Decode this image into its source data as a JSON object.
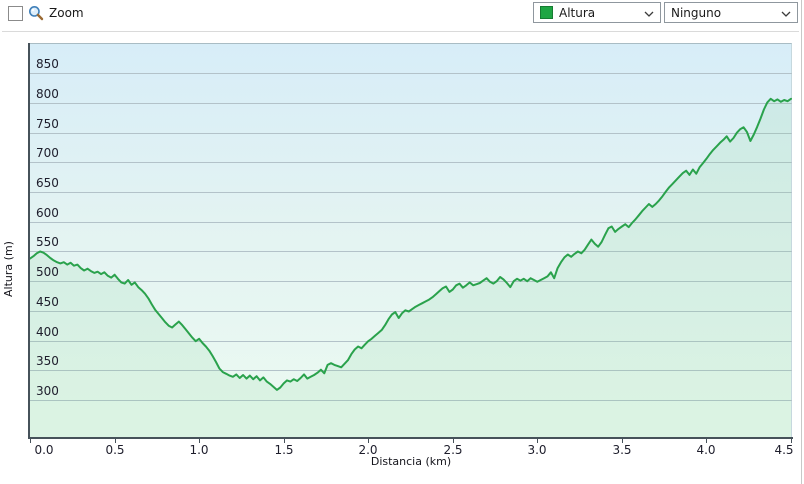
{
  "toolbar": {
    "zoom_label": "Zoom",
    "zoom_checkbox_checked": false,
    "series_combobox": {
      "value": "Altura",
      "swatch_color": "#1fa644",
      "icon": "chevron-down-icon"
    },
    "overlay_combobox": {
      "value": "Ninguno",
      "icon": "chevron-down-icon"
    }
  },
  "colors": {
    "line_green": "#2aa24c",
    "area_fill": "rgba(130,210,150,0.15)",
    "gridline": "#b3c2c9",
    "axis_dark": "#46525a",
    "plot_gradient_top": "#d7edf8",
    "plot_gradient_bottom": "#ecfaf1"
  },
  "chart_data": {
    "type": "line",
    "title": "",
    "xlabel": "Distancia (km)",
    "ylabel": "Altura (m)",
    "xlim": [
      0,
      4.5
    ],
    "ylim": [
      236,
      901
    ],
    "x_ticks": [
      "0.0",
      "0.5",
      "1.0",
      "1.5",
      "2.0",
      "2.5",
      "3.0",
      "3.5",
      "4.0",
      "4.5"
    ],
    "y_ticks": [
      300,
      350,
      400,
      450,
      500,
      550,
      600,
      650,
      700,
      750,
      800,
      850
    ],
    "grid": true,
    "legend_position": "toolbar-combobox",
    "series": [
      {
        "name": "Altura",
        "color": "#2aa24c",
        "points": [
          [
            0.0,
            538
          ],
          [
            0.02,
            542
          ],
          [
            0.04,
            547
          ],
          [
            0.06,
            550
          ],
          [
            0.08,
            548
          ],
          [
            0.1,
            544
          ],
          [
            0.12,
            539
          ],
          [
            0.14,
            535
          ],
          [
            0.16,
            532
          ],
          [
            0.18,
            530
          ],
          [
            0.2,
            532
          ],
          [
            0.22,
            528
          ],
          [
            0.24,
            531
          ],
          [
            0.26,
            526
          ],
          [
            0.28,
            528
          ],
          [
            0.3,
            522
          ],
          [
            0.32,
            518
          ],
          [
            0.34,
            521
          ],
          [
            0.36,
            517
          ],
          [
            0.38,
            514
          ],
          [
            0.4,
            516
          ],
          [
            0.42,
            512
          ],
          [
            0.44,
            515
          ],
          [
            0.46,
            509
          ],
          [
            0.48,
            506
          ],
          [
            0.5,
            511
          ],
          [
            0.52,
            504
          ],
          [
            0.54,
            498
          ],
          [
            0.56,
            496
          ],
          [
            0.58,
            502
          ],
          [
            0.6,
            494
          ],
          [
            0.62,
            498
          ],
          [
            0.64,
            490
          ],
          [
            0.66,
            485
          ],
          [
            0.68,
            479
          ],
          [
            0.7,
            471
          ],
          [
            0.72,
            461
          ],
          [
            0.74,
            452
          ],
          [
            0.76,
            445
          ],
          [
            0.78,
            438
          ],
          [
            0.8,
            431
          ],
          [
            0.82,
            425
          ],
          [
            0.84,
            422
          ],
          [
            0.86,
            427
          ],
          [
            0.88,
            432
          ],
          [
            0.9,
            426
          ],
          [
            0.92,
            419
          ],
          [
            0.94,
            412
          ],
          [
            0.96,
            405
          ],
          [
            0.98,
            399
          ],
          [
            1.0,
            403
          ],
          [
            1.02,
            396
          ],
          [
            1.04,
            390
          ],
          [
            1.06,
            383
          ],
          [
            1.08,
            374
          ],
          [
            1.1,
            364
          ],
          [
            1.12,
            353
          ],
          [
            1.14,
            347
          ],
          [
            1.16,
            344
          ],
          [
            1.18,
            341
          ],
          [
            1.2,
            339
          ],
          [
            1.22,
            343
          ],
          [
            1.24,
            337
          ],
          [
            1.26,
            342
          ],
          [
            1.28,
            336
          ],
          [
            1.3,
            341
          ],
          [
            1.32,
            335
          ],
          [
            1.34,
            340
          ],
          [
            1.36,
            333
          ],
          [
            1.38,
            338
          ],
          [
            1.4,
            331
          ],
          [
            1.42,
            327
          ],
          [
            1.44,
            322
          ],
          [
            1.46,
            317
          ],
          [
            1.48,
            321
          ],
          [
            1.5,
            328
          ],
          [
            1.52,
            333
          ],
          [
            1.54,
            331
          ],
          [
            1.56,
            335
          ],
          [
            1.58,
            332
          ],
          [
            1.6,
            337
          ],
          [
            1.62,
            343
          ],
          [
            1.64,
            336
          ],
          [
            1.66,
            339
          ],
          [
            1.68,
            342
          ],
          [
            1.7,
            346
          ],
          [
            1.72,
            351
          ],
          [
            1.74,
            345
          ],
          [
            1.76,
            359
          ],
          [
            1.78,
            362
          ],
          [
            1.8,
            359
          ],
          [
            1.82,
            357
          ],
          [
            1.84,
            355
          ],
          [
            1.86,
            361
          ],
          [
            1.88,
            367
          ],
          [
            1.9,
            377
          ],
          [
            1.92,
            385
          ],
          [
            1.94,
            390
          ],
          [
            1.96,
            387
          ],
          [
            1.98,
            393
          ],
          [
            2.0,
            399
          ],
          [
            2.02,
            403
          ],
          [
            2.04,
            408
          ],
          [
            2.06,
            413
          ],
          [
            2.08,
            418
          ],
          [
            2.1,
            426
          ],
          [
            2.12,
            436
          ],
          [
            2.14,
            444
          ],
          [
            2.16,
            448
          ],
          [
            2.18,
            438
          ],
          [
            2.2,
            446
          ],
          [
            2.22,
            451
          ],
          [
            2.24,
            449
          ],
          [
            2.26,
            453
          ],
          [
            2.28,
            457
          ],
          [
            2.3,
            460
          ],
          [
            2.32,
            463
          ],
          [
            2.34,
            466
          ],
          [
            2.36,
            469
          ],
          [
            2.38,
            473
          ],
          [
            2.4,
            478
          ],
          [
            2.42,
            483
          ],
          [
            2.44,
            488
          ],
          [
            2.46,
            491
          ],
          [
            2.48,
            482
          ],
          [
            2.5,
            486
          ],
          [
            2.52,
            493
          ],
          [
            2.54,
            496
          ],
          [
            2.56,
            489
          ],
          [
            2.58,
            493
          ],
          [
            2.6,
            498
          ],
          [
            2.62,
            493
          ],
          [
            2.64,
            495
          ],
          [
            2.66,
            497
          ],
          [
            2.68,
            501
          ],
          [
            2.7,
            505
          ],
          [
            2.72,
            499
          ],
          [
            2.74,
            496
          ],
          [
            2.76,
            500
          ],
          [
            2.78,
            507
          ],
          [
            2.8,
            503
          ],
          [
            2.82,
            497
          ],
          [
            2.84,
            490
          ],
          [
            2.86,
            500
          ],
          [
            2.88,
            504
          ],
          [
            2.9,
            501
          ],
          [
            2.92,
            504
          ],
          [
            2.94,
            500
          ],
          [
            2.96,
            505
          ],
          [
            2.98,
            502
          ],
          [
            3.0,
            499
          ],
          [
            3.02,
            502
          ],
          [
            3.04,
            505
          ],
          [
            3.06,
            508
          ],
          [
            3.08,
            515
          ],
          [
            3.1,
            505
          ],
          [
            3.12,
            522
          ],
          [
            3.14,
            532
          ],
          [
            3.16,
            540
          ],
          [
            3.18,
            545
          ],
          [
            3.2,
            541
          ],
          [
            3.22,
            546
          ],
          [
            3.24,
            550
          ],
          [
            3.26,
            547
          ],
          [
            3.28,
            553
          ],
          [
            3.3,
            562
          ],
          [
            3.32,
            570
          ],
          [
            3.34,
            563
          ],
          [
            3.36,
            558
          ],
          [
            3.38,
            566
          ],
          [
            3.4,
            578
          ],
          [
            3.42,
            589
          ],
          [
            3.44,
            592
          ],
          [
            3.46,
            583
          ],
          [
            3.48,
            588
          ],
          [
            3.5,
            592
          ],
          [
            3.52,
            596
          ],
          [
            3.54,
            591
          ],
          [
            3.56,
            598
          ],
          [
            3.58,
            604
          ],
          [
            3.6,
            611
          ],
          [
            3.62,
            618
          ],
          [
            3.64,
            624
          ],
          [
            3.66,
            630
          ],
          [
            3.68,
            625
          ],
          [
            3.7,
            630
          ],
          [
            3.72,
            636
          ],
          [
            3.74,
            643
          ],
          [
            3.76,
            651
          ],
          [
            3.78,
            658
          ],
          [
            3.8,
            664
          ],
          [
            3.82,
            670
          ],
          [
            3.84,
            676
          ],
          [
            3.86,
            682
          ],
          [
            3.88,
            686
          ],
          [
            3.9,
            679
          ],
          [
            3.92,
            688
          ],
          [
            3.94,
            681
          ],
          [
            3.96,
            692
          ],
          [
            3.98,
            699
          ],
          [
            4.0,
            706
          ],
          [
            4.02,
            714
          ],
          [
            4.04,
            721
          ],
          [
            4.06,
            727
          ],
          [
            4.08,
            733
          ],
          [
            4.1,
            738
          ],
          [
            4.12,
            744
          ],
          [
            4.14,
            735
          ],
          [
            4.16,
            741
          ],
          [
            4.18,
            750
          ],
          [
            4.2,
            756
          ],
          [
            4.22,
            759
          ],
          [
            4.24,
            751
          ],
          [
            4.26,
            736
          ],
          [
            4.28,
            747
          ],
          [
            4.3,
            760
          ],
          [
            4.32,
            774
          ],
          [
            4.34,
            789
          ],
          [
            4.36,
            801
          ],
          [
            4.38,
            807
          ],
          [
            4.4,
            803
          ],
          [
            4.42,
            806
          ],
          [
            4.44,
            802
          ],
          [
            4.46,
            805
          ],
          [
            4.48,
            803
          ],
          [
            4.5,
            807
          ]
        ]
      }
    ]
  }
}
